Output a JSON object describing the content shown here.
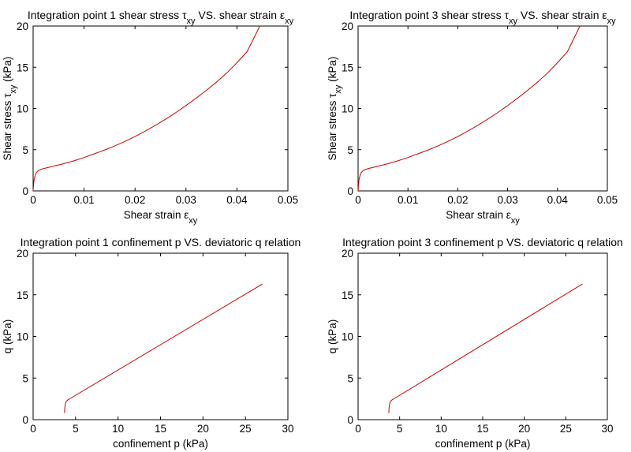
{
  "chart_data": [
    {
      "type": "line",
      "title": "Integration point 1 shear stress τxy VS. shear strain εxy",
      "title_parts": [
        "Integration point 1 shear stress ",
        "τ",
        "xy",
        " VS. shear strain ",
        "ε",
        "xy"
      ],
      "xlabel": "Shear strain εxy",
      "xlabel_parts": [
        "Shear strain ",
        "ε",
        "xy"
      ],
      "ylabel": "Shear stress τxy (kPa)",
      "ylabel_parts": [
        "Shear stress ",
        "τ",
        "xy",
        " (kPa)"
      ],
      "xlim": [
        0,
        0.05
      ],
      "ylim": [
        0,
        20
      ],
      "xticks": [
        0,
        0.01,
        0.02,
        0.03,
        0.04,
        0.05
      ],
      "xtick_labels": [
        "0",
        "0.01",
        "0.02",
        "0.03",
        "0.04",
        "0.05"
      ],
      "yticks": [
        0,
        5,
        10,
        15,
        20
      ],
      "ytick_labels": [
        "0",
        "5",
        "10",
        "15",
        "20"
      ],
      "color": "#cc0000",
      "grid": false,
      "series": [
        {
          "x": [
            0,
            0.0001,
            0.0002,
            0.0004,
            0.0006,
            0.0009,
            0.0013,
            0.002,
            0.003,
            0.004,
            0.005,
            0.006,
            0.008,
            0.01,
            0.012,
            0.014,
            0.016,
            0.018,
            0.02,
            0.022,
            0.024,
            0.026,
            0.028,
            0.03,
            0.032,
            0.034,
            0.036,
            0.038,
            0.04,
            0.042,
            0.0445
          ],
          "y": [
            0,
            0.8,
            1.4,
            1.9,
            2.2,
            2.4,
            2.55,
            2.7,
            2.85,
            3.0,
            3.15,
            3.3,
            3.65,
            4.05,
            4.5,
            4.95,
            5.45,
            6.0,
            6.6,
            7.25,
            7.95,
            8.7,
            9.5,
            10.35,
            11.25,
            12.2,
            13.2,
            14.3,
            15.55,
            16.9,
            20.0
          ]
        }
      ]
    },
    {
      "type": "line",
      "title": "Integration point 3 shear stress τxy VS. shear strain εxy",
      "title_parts": [
        "Integration point 3 shear stress ",
        "τ",
        "xy",
        " VS. shear strain ",
        "ε",
        "xy"
      ],
      "xlabel": "Shear strain εxy",
      "xlabel_parts": [
        "Shear strain ",
        "ε",
        "xy"
      ],
      "ylabel": "Shear stress τxy (kPa)",
      "ylabel_parts": [
        "Shear stress ",
        "τ",
        "xy",
        " (kPa)"
      ],
      "xlim": [
        0,
        0.05
      ],
      "ylim": [
        0,
        20
      ],
      "xticks": [
        0,
        0.01,
        0.02,
        0.03,
        0.04,
        0.05
      ],
      "xtick_labels": [
        "0",
        "0.01",
        "0.02",
        "0.03",
        "0.04",
        "0.05"
      ],
      "yticks": [
        0,
        5,
        10,
        15,
        20
      ],
      "ytick_labels": [
        "0",
        "5",
        "10",
        "15",
        "20"
      ],
      "color": "#cc0000",
      "grid": false,
      "series": [
        {
          "x": [
            0,
            0.0001,
            0.0002,
            0.0004,
            0.0006,
            0.0009,
            0.0013,
            0.002,
            0.003,
            0.004,
            0.005,
            0.006,
            0.008,
            0.01,
            0.012,
            0.014,
            0.016,
            0.018,
            0.02,
            0.022,
            0.024,
            0.026,
            0.028,
            0.03,
            0.032,
            0.034,
            0.036,
            0.038,
            0.04,
            0.042,
            0.0445
          ],
          "y": [
            0,
            0.8,
            1.4,
            1.9,
            2.2,
            2.4,
            2.55,
            2.7,
            2.85,
            3.0,
            3.15,
            3.3,
            3.65,
            4.05,
            4.5,
            4.95,
            5.45,
            6.0,
            6.6,
            7.25,
            7.95,
            8.7,
            9.5,
            10.35,
            11.25,
            12.2,
            13.2,
            14.3,
            15.55,
            16.9,
            20.0
          ]
        }
      ]
    },
    {
      "type": "line",
      "title": "Integration point 1 confinement p VS. deviatoric q relation",
      "title_parts": [
        "Integration point 1 confinement p VS. deviatoric q relation"
      ],
      "xlabel": "confinement p (kPa)",
      "xlabel_parts": [
        "confinement p (kPa)"
      ],
      "ylabel": "q (kPa)",
      "ylabel_parts": [
        "q (kPa)"
      ],
      "xlim": [
        0,
        30
      ],
      "ylim": [
        0,
        20
      ],
      "xticks": [
        0,
        5,
        10,
        15,
        20,
        25,
        30
      ],
      "xtick_labels": [
        "0",
        "5",
        "10",
        "15",
        "20",
        "25",
        "30"
      ],
      "yticks": [
        0,
        5,
        10,
        15,
        20
      ],
      "ytick_labels": [
        "0",
        "5",
        "10",
        "15",
        "20"
      ],
      "color": "#cc0000",
      "grid": false,
      "series": [
        {
          "x": [
            3.7,
            3.72,
            3.76,
            3.82,
            3.9,
            4.05,
            4.3,
            27.0
          ],
          "y": [
            0.8,
            1.3,
            1.7,
            2.0,
            2.2,
            2.35,
            2.5,
            16.3
          ]
        }
      ]
    },
    {
      "type": "line",
      "title": "Integration point 3 confinement p VS. deviatoric q relation",
      "title_parts": [
        "Integration point 3 confinement p VS. deviatoric q relation"
      ],
      "xlabel": "confinement p (kPa)",
      "xlabel_parts": [
        "confinement p (kPa)"
      ],
      "ylabel": "q (kPa)",
      "ylabel_parts": [
        "q (kPa)"
      ],
      "xlim": [
        0,
        30
      ],
      "ylim": [
        0,
        20
      ],
      "xticks": [
        0,
        5,
        10,
        15,
        20,
        25,
        30
      ],
      "xtick_labels": [
        "0",
        "5",
        "10",
        "15",
        "20",
        "25",
        "30"
      ],
      "yticks": [
        0,
        5,
        10,
        15,
        20
      ],
      "ytick_labels": [
        "0",
        "5",
        "10",
        "15",
        "20"
      ],
      "color": "#cc0000",
      "grid": false,
      "series": [
        {
          "x": [
            3.7,
            3.72,
            3.76,
            3.82,
            3.9,
            4.05,
            4.3,
            27.0
          ],
          "y": [
            0.8,
            1.3,
            1.7,
            2.0,
            2.2,
            2.35,
            2.5,
            16.3
          ]
        }
      ]
    }
  ]
}
